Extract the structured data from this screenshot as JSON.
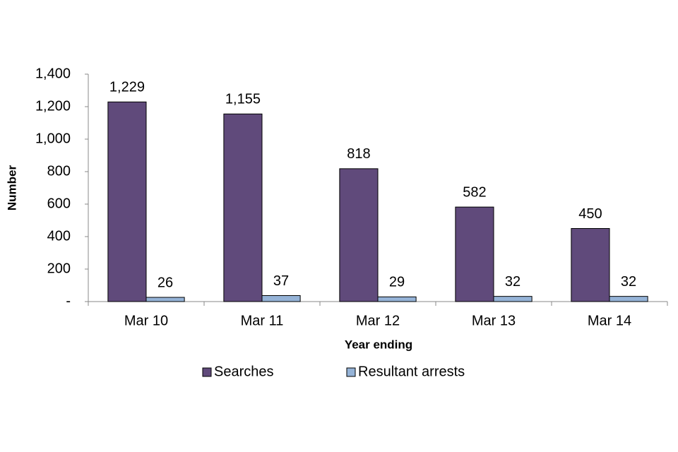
{
  "chart_data": {
    "type": "bar",
    "x_label": "Year ending",
    "y_label": "Number",
    "categories": [
      "Mar 10",
      "Mar 11",
      "Mar 12",
      "Mar 13",
      "Mar 14"
    ],
    "series": [
      {
        "name": "Searches",
        "color": "#604a7b",
        "values": [
          1229,
          1155,
          818,
          582,
          450
        ],
        "value_labels": [
          "1,229",
          "1,155",
          "818",
          "582",
          "450"
        ]
      },
      {
        "name": "Resultant arrests",
        "color": "#95b3d7",
        "values": [
          26,
          37,
          29,
          32,
          32
        ]
      }
    ],
    "ylim": [
      0,
      1400
    ],
    "yticks": [
      {
        "value": 0,
        "label": "-"
      },
      200,
      400,
      600,
      800,
      {
        "value": 1000,
        "label": "1,000"
      },
      {
        "value": 1200,
        "label": "1,200"
      },
      {
        "value": 1400,
        "label": "1,400"
      }
    ],
    "grid": false,
    "legend": "bottom"
  }
}
